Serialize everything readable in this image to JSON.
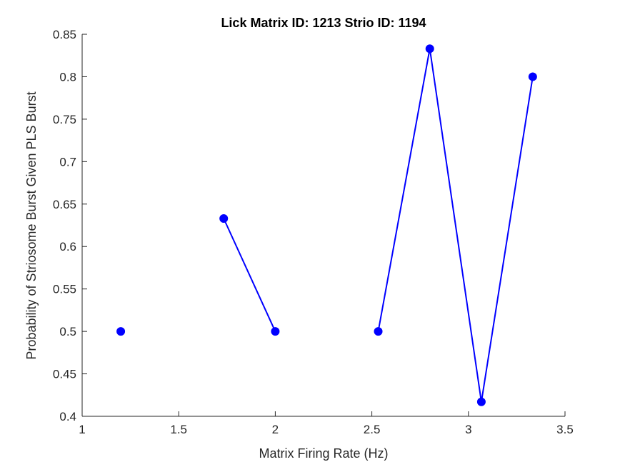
{
  "chart_data": {
    "type": "line",
    "title": "Lick Matrix ID: 1213 Strio ID: 1194",
    "xlabel": "Matrix Firing Rate (Hz)",
    "ylabel": "Probability of Striosome Burst Given PLS Burst",
    "xlim": [
      1,
      3.5
    ],
    "ylim": [
      0.4,
      0.85
    ],
    "xticks": [
      1,
      1.5,
      2,
      2.5,
      3,
      3.5
    ],
    "xtick_labels": [
      "1",
      "1.5",
      "2",
      "2.5",
      "3",
      "3.5"
    ],
    "yticks": [
      0.4,
      0.45,
      0.5,
      0.55,
      0.6,
      0.65,
      0.7,
      0.75,
      0.8,
      0.85
    ],
    "ytick_labels": [
      "0.4",
      "0.45",
      "0.5",
      "0.55",
      "0.6",
      "0.65",
      "0.7",
      "0.75",
      "0.8",
      "0.85"
    ],
    "grid": false,
    "series": [
      {
        "color": "#0000ff",
        "marker": "circle",
        "segments": [
          [
            [
              1.2,
              0.5
            ]
          ],
          [
            [
              1.733,
              0.633
            ],
            [
              2.0,
              0.5
            ]
          ],
          [
            [
              2.533,
              0.5
            ],
            [
              2.8,
              0.833
            ],
            [
              3.067,
              0.417
            ],
            [
              3.333,
              0.8
            ]
          ]
        ]
      }
    ]
  }
}
